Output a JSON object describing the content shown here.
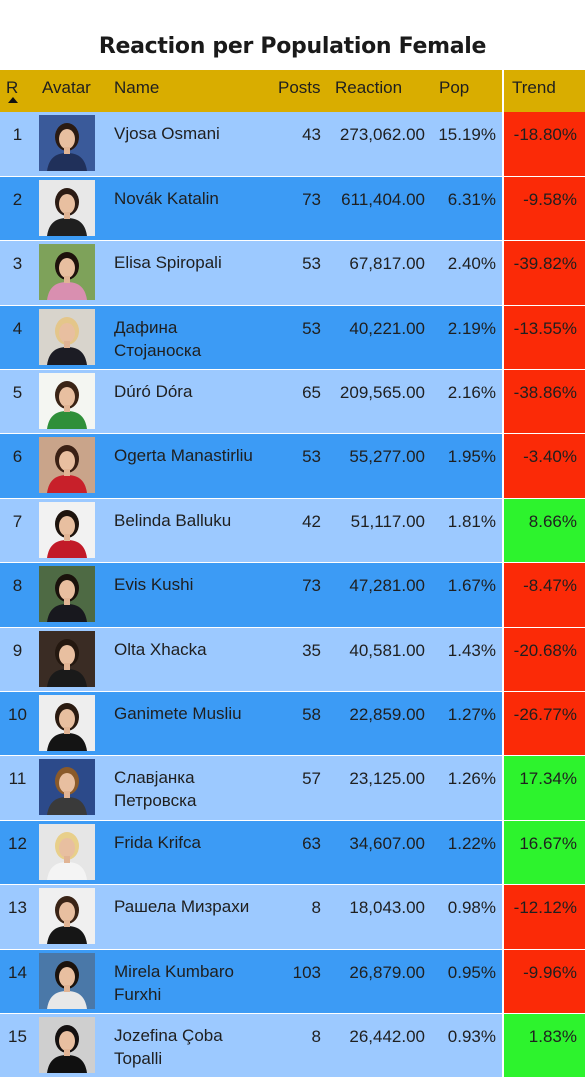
{
  "title": "Reaction per Population Female",
  "columns": {
    "rank": "R",
    "avatar": "Avatar",
    "name": "Name",
    "posts": "Posts",
    "reaction": "Reaction",
    "pop": "Pop",
    "trend": "Trend"
  },
  "sort": {
    "column": "rank",
    "direction": "ascending",
    "icon": "sort-up-icon"
  },
  "colors": {
    "header": "#d9ad00",
    "row_light": "#9cc9ff",
    "row_dark": "#3c9bf5",
    "trend_negative": "#fb2a07",
    "trend_positive": "#2df32d"
  },
  "rows": [
    {
      "rank": "1",
      "name": "Vjosa Osmani",
      "posts": "43",
      "reaction": "273,062.00",
      "pop": "15.19%",
      "trend": "-18.80%",
      "dir": "neg",
      "bg": "#3a5a9a",
      "hair": "#2a1a12",
      "top": "#20305a"
    },
    {
      "rank": "2",
      "name": "Novák Katalin",
      "posts": "73",
      "reaction": "611,404.00",
      "pop": "6.31%",
      "trend": "-9.58%",
      "dir": "neg",
      "bg": "#e8e8e8",
      "hair": "#2b1b14",
      "top": "#1f1f1f"
    },
    {
      "rank": "3",
      "name": "Elisa Spiropali",
      "posts": "53",
      "reaction": "67,817.00",
      "pop": "2.40%",
      "trend": "-39.82%",
      "dir": "neg",
      "bg": "#7ea25a",
      "hair": "#1e120c",
      "top": "#d98fb0"
    },
    {
      "rank": "4",
      "name": "Дафина Стојаноска",
      "posts": "53",
      "reaction": "40,221.00",
      "pop": "2.19%",
      "trend": "-13.55%",
      "dir": "neg",
      "bg": "#d8d4cc",
      "hair": "#e4c68a",
      "top": "#1c1c24"
    },
    {
      "rank": "5",
      "name": "Dúró Dóra",
      "posts": "65",
      "reaction": "209,565.00",
      "pop": "2.16%",
      "trend": "-38.86%",
      "dir": "neg",
      "bg": "#f4f6f2",
      "hair": "#3a2416",
      "top": "#2f8f3a"
    },
    {
      "rank": "6",
      "name": "Ogerta Manastirliu",
      "posts": "53",
      "reaction": "55,277.00",
      "pop": "1.95%",
      "trend": "-3.40%",
      "dir": "neg",
      "bg": "#c9a48a",
      "hair": "#3a2014",
      "top": "#c8202a"
    },
    {
      "rank": "7",
      "name": "Belinda Balluku",
      "posts": "42",
      "reaction": "51,117.00",
      "pop": "1.81%",
      "trend": "8.66%",
      "dir": "pos",
      "bg": "#f2f2f2",
      "hair": "#1e140e",
      "top": "#c21a28"
    },
    {
      "rank": "8",
      "name": "Evis Kushi",
      "posts": "73",
      "reaction": "47,281.00",
      "pop": "1.67%",
      "trend": "-8.47%",
      "dir": "neg",
      "bg": "#4e6a44",
      "hair": "#1a120c",
      "top": "#18181e"
    },
    {
      "rank": "9",
      "name": "Olta Xhacka",
      "posts": "35",
      "reaction": "40,581.00",
      "pop": "1.43%",
      "trend": "-20.68%",
      "dir": "neg",
      "bg": "#3a2c24",
      "hair": "#241810",
      "top": "#1a1a1a"
    },
    {
      "rank": "10",
      "name": "Ganimete Musliu",
      "posts": "58",
      "reaction": "22,859.00",
      "pop": "1.27%",
      "trend": "-26.77%",
      "dir": "neg",
      "bg": "#eeeeee",
      "hair": "#2a1a10",
      "top": "#141414"
    },
    {
      "rank": "11",
      "name": "Славјанка Петровска",
      "posts": "57",
      "reaction": "23,125.00",
      "pop": "1.26%",
      "trend": "17.34%",
      "dir": "pos",
      "bg": "#2c4a8a",
      "hair": "#8a5a2a",
      "top": "#3a3a3a"
    },
    {
      "rank": "12",
      "name": "Frida Krifca",
      "posts": "63",
      "reaction": "34,607.00",
      "pop": "1.22%",
      "trend": "16.67%",
      "dir": "pos",
      "bg": "#e6e6e6",
      "hair": "#e8cf8a",
      "top": "#f4f4f4"
    },
    {
      "rank": "13",
      "name": "Рашела Мизрахи",
      "posts": "8",
      "reaction": "18,043.00",
      "pop": "0.98%",
      "trend": "-12.12%",
      "dir": "neg",
      "bg": "#f0f0f0",
      "hair": "#3a2416",
      "top": "#161616"
    },
    {
      "rank": "14",
      "name": "Mirela Kumbaro Furxhi",
      "posts": "103",
      "reaction": "26,879.00",
      "pop": "0.95%",
      "trend": "-9.96%",
      "dir": "neg",
      "bg": "#4a78a8",
      "hair": "#1a120c",
      "top": "#e8e8e8"
    },
    {
      "rank": "15",
      "name": "Jozefina Çoba Topalli",
      "posts": "8",
      "reaction": "26,442.00",
      "pop": "0.93%",
      "trend": "1.83%",
      "dir": "pos",
      "bg": "#cfcfcf",
      "hair": "#141010",
      "top": "#101010"
    }
  ]
}
